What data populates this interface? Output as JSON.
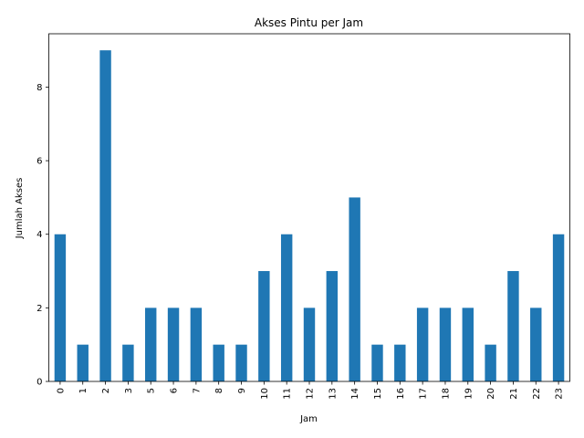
{
  "chart_data": {
    "type": "bar",
    "title": "Akses Pintu per Jam",
    "xlabel": "Jam",
    "ylabel": "Jumlah Akses",
    "categories": [
      "0",
      "1",
      "2",
      "3",
      "5",
      "6",
      "7",
      "8",
      "9",
      "10",
      "11",
      "12",
      "13",
      "14",
      "15",
      "16",
      "17",
      "18",
      "19",
      "20",
      "21",
      "22",
      "23"
    ],
    "values": [
      4,
      1,
      9,
      1,
      2,
      2,
      2,
      1,
      1,
      3,
      4,
      2,
      3,
      5,
      1,
      1,
      2,
      2,
      2,
      1,
      3,
      2,
      4
    ],
    "ylim": [
      0,
      9.45
    ],
    "yticks": [
      0,
      2,
      4,
      6,
      8
    ],
    "grid": false,
    "bar_color": "#1f77b4"
  }
}
